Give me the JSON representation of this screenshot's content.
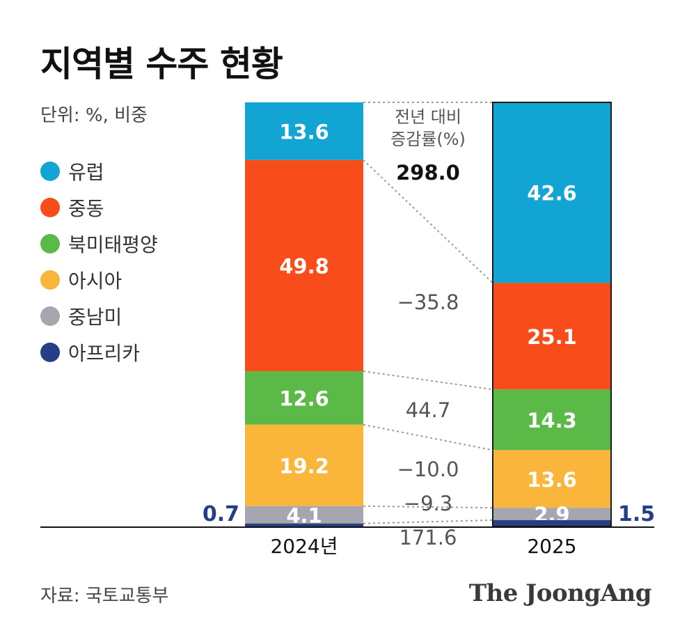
{
  "title": "지역별 수주 현황",
  "unit": "단위: %, 비중",
  "source": "자료: 국토교통부",
  "logo": "The JoongAng",
  "legend": [
    {
      "label": "유럽",
      "color": "#12a5d3"
    },
    {
      "label": "중동",
      "color": "#f84c1b"
    },
    {
      "label": "북미태평양",
      "color": "#5ab947"
    },
    {
      "label": "아시아",
      "color": "#fab63a"
    },
    {
      "label": "중남미",
      "color": "#a5a6ae"
    },
    {
      "label": "아프리카",
      "color": "#263e86"
    }
  ],
  "chart_data": {
    "type": "stacked-bar",
    "categories": [
      "2024년",
      "2025"
    ],
    "series": [
      {
        "name": "유럽",
        "values": [
          13.6,
          42.6
        ],
        "change": "298.0",
        "color": "#12a5d3"
      },
      {
        "name": "중동",
        "values": [
          49.8,
          25.1
        ],
        "change": "−35.8",
        "color": "#f84c1b"
      },
      {
        "name": "북미태평양",
        "values": [
          12.6,
          14.3
        ],
        "change": "44.7",
        "color": "#5ab947"
      },
      {
        "name": "아시아",
        "values": [
          19.2,
          13.6
        ],
        "change": "−10.0",
        "color": "#fab63a"
      },
      {
        "name": "중남미",
        "values": [
          4.1,
          2.9
        ],
        "change": "−9.3",
        "color": "#a5a6ae"
      },
      {
        "name": "아프리카",
        "values": [
          0.7,
          1.5
        ],
        "change": "171.6",
        "color": "#263e86"
      }
    ],
    "change_header": [
      "전년 대비",
      "증감률(%)"
    ],
    "outside_labels": [
      "0.7",
      "1.5"
    ],
    "ylim": [
      0,
      100
    ]
  }
}
